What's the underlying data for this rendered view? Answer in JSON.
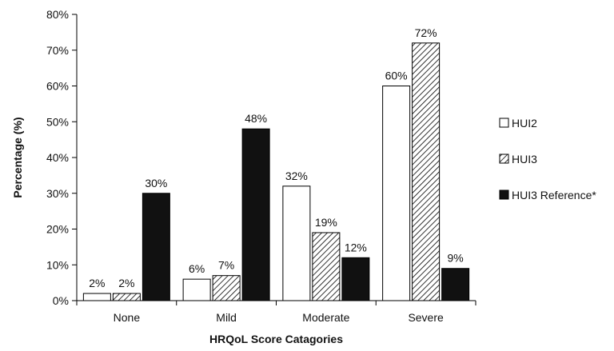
{
  "chart_data": {
    "type": "bar",
    "title": "",
    "xlabel": "HRQoL Score Catagories",
    "ylabel": "Percentage (%)",
    "categories": [
      "None",
      "Mild",
      "Moderate",
      "Severe"
    ],
    "ylim": [
      0,
      80
    ],
    "ytick_step": 10,
    "ytick_suffix": "%",
    "grid": false,
    "legend_position": "right",
    "series": [
      {
        "name": "HUI2",
        "values": [
          2,
          6,
          32,
          60
        ],
        "style": "white-fill",
        "color": "#ffffff"
      },
      {
        "name": "HUI3",
        "values": [
          2,
          7,
          19,
          72
        ],
        "style": "diagonal-hatch",
        "color": "#000000"
      },
      {
        "name": "HUI3 Reference*",
        "values": [
          30,
          48,
          12,
          9
        ],
        "style": "solid-black",
        "color": "#111111"
      }
    ]
  }
}
